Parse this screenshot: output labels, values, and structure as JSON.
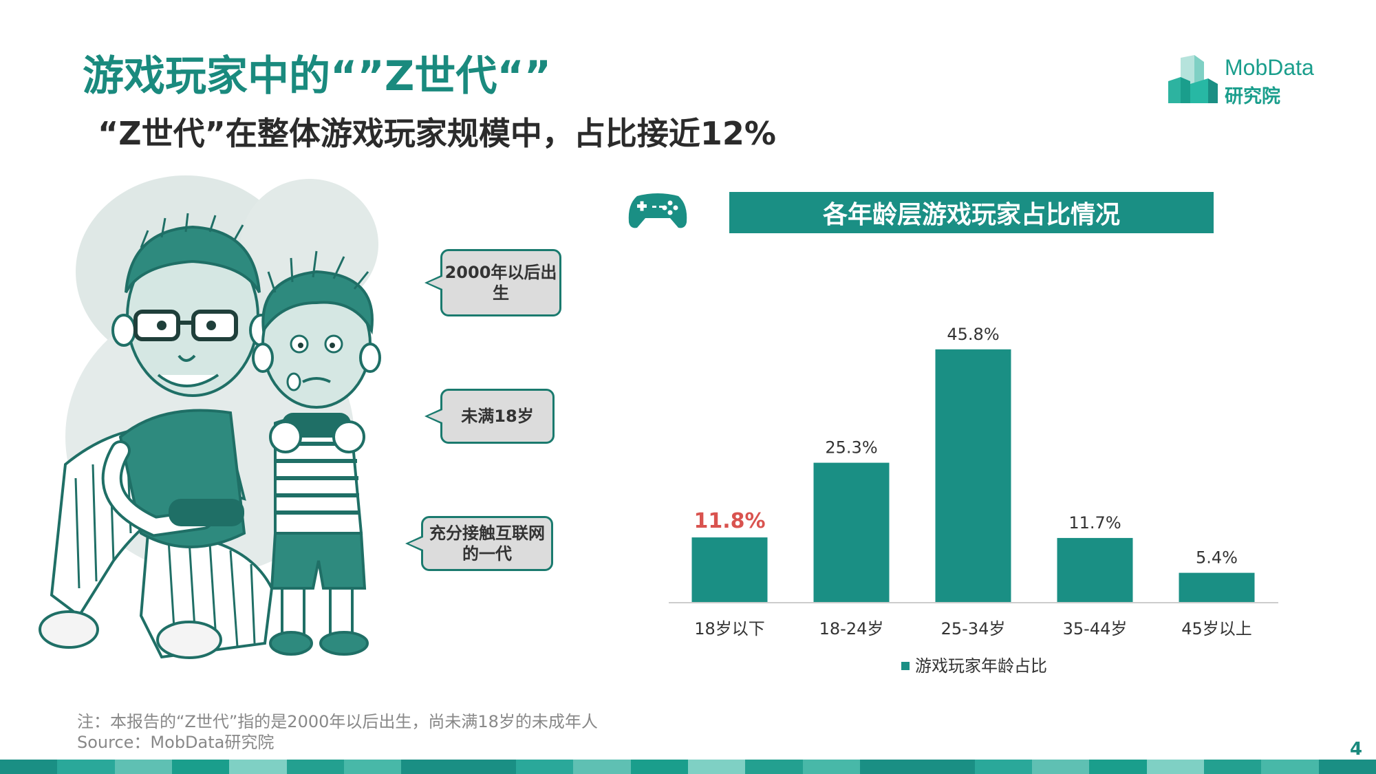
{
  "header": {
    "title": "游戏玩家中的“”Z世代“”",
    "subtitle": "“Z世代”在整体游戏玩家规模中，占比接近12%"
  },
  "logo": {
    "line1": "MobData",
    "line2": "研究院"
  },
  "bubbles": [
    {
      "text": "2000年以后出生"
    },
    {
      "text": "未满18岁"
    },
    {
      "text": "充分接触互联网的一代"
    }
  ],
  "chart_header": "各年龄层游戏玩家占比情况",
  "icons": {
    "gamepad": "gamepad-icon",
    "logo": "building-logo-icon"
  },
  "colors": {
    "accent": "#1a8f84",
    "highlight": "#d9534f",
    "text": "#333333"
  },
  "chart_data": {
    "type": "bar",
    "categories": [
      "18岁以下",
      "18-24岁",
      "25-34岁",
      "35-44岁",
      "45岁以上"
    ],
    "values": [
      11.8,
      25.3,
      45.8,
      11.7,
      5.4
    ],
    "value_labels": [
      "11.8%",
      "25.3%",
      "45.8%",
      "11.7%",
      "5.4%"
    ],
    "series": [
      {
        "name": "游戏玩家年龄占比",
        "values": [
          11.8,
          25.3,
          45.8,
          11.7,
          5.4
        ]
      }
    ],
    "highlight_index": 0,
    "ylim": [
      0,
      50
    ],
    "legend_position": "bottom",
    "grid": false
  },
  "footnote": {
    "note": "注：本报告的“Z世代”指的是2000年以后出生，尚未满18岁的未成年人",
    "source": "Source：MobData研究院"
  },
  "page_number": "4"
}
